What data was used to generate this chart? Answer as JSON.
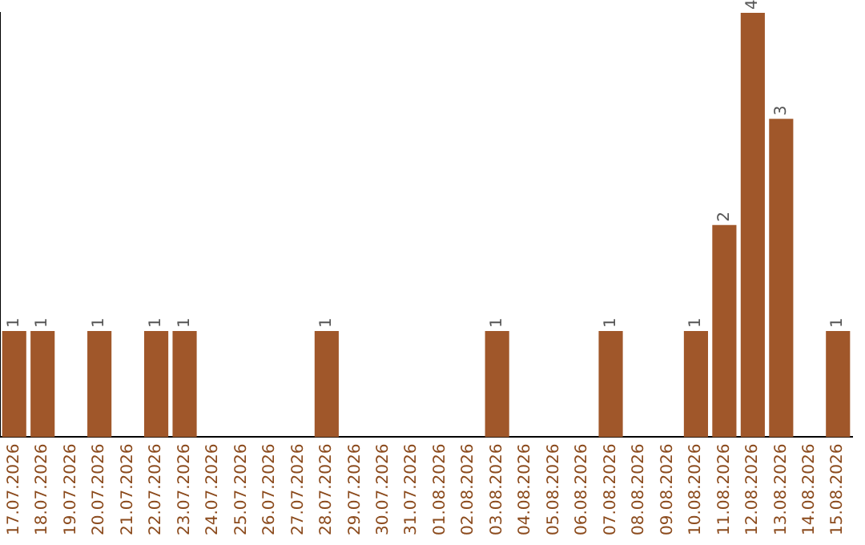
{
  "chart_data": {
    "type": "bar",
    "categories": [
      "17.07.2026",
      "18.07.2026",
      "19.07.2026",
      "20.07.2026",
      "21.07.2026",
      "22.07.2026",
      "23.07.2026",
      "24.07.2026",
      "25.07.2026",
      "26.07.2026",
      "27.07.2026",
      "28.07.2026",
      "29.07.2026",
      "30.07.2026",
      "31.07.2026",
      "01.08.2026",
      "02.08.2026",
      "03.08.2026",
      "04.08.2026",
      "05.08.2026",
      "06.08.2026",
      "07.08.2026",
      "08.08.2026",
      "09.08.2026",
      "10.08.2026",
      "11.08.2026",
      "12.08.2026",
      "13.08.2026",
      "14.08.2026",
      "15.08.2026"
    ],
    "values": [
      1,
      1,
      0,
      1,
      0,
      1,
      1,
      0,
      0,
      0,
      0,
      1,
      0,
      0,
      0,
      0,
      0,
      1,
      0,
      0,
      0,
      1,
      0,
      0,
      1,
      2,
      4,
      3,
      0,
      1
    ],
    "value_labels": [
      "1",
      "1",
      null,
      "1",
      null,
      "1",
      "1",
      null,
      null,
      null,
      null,
      "1",
      null,
      null,
      null,
      null,
      null,
      "1",
      null,
      null,
      null,
      "1",
      null,
      null,
      "1",
      "2",
      "4",
      "3",
      null,
      "1"
    ],
    "color": "#a0572a",
    "ylim": [
      0,
      4
    ],
    "tick_labels": "x",
    "grid": false,
    "legend": false
  }
}
